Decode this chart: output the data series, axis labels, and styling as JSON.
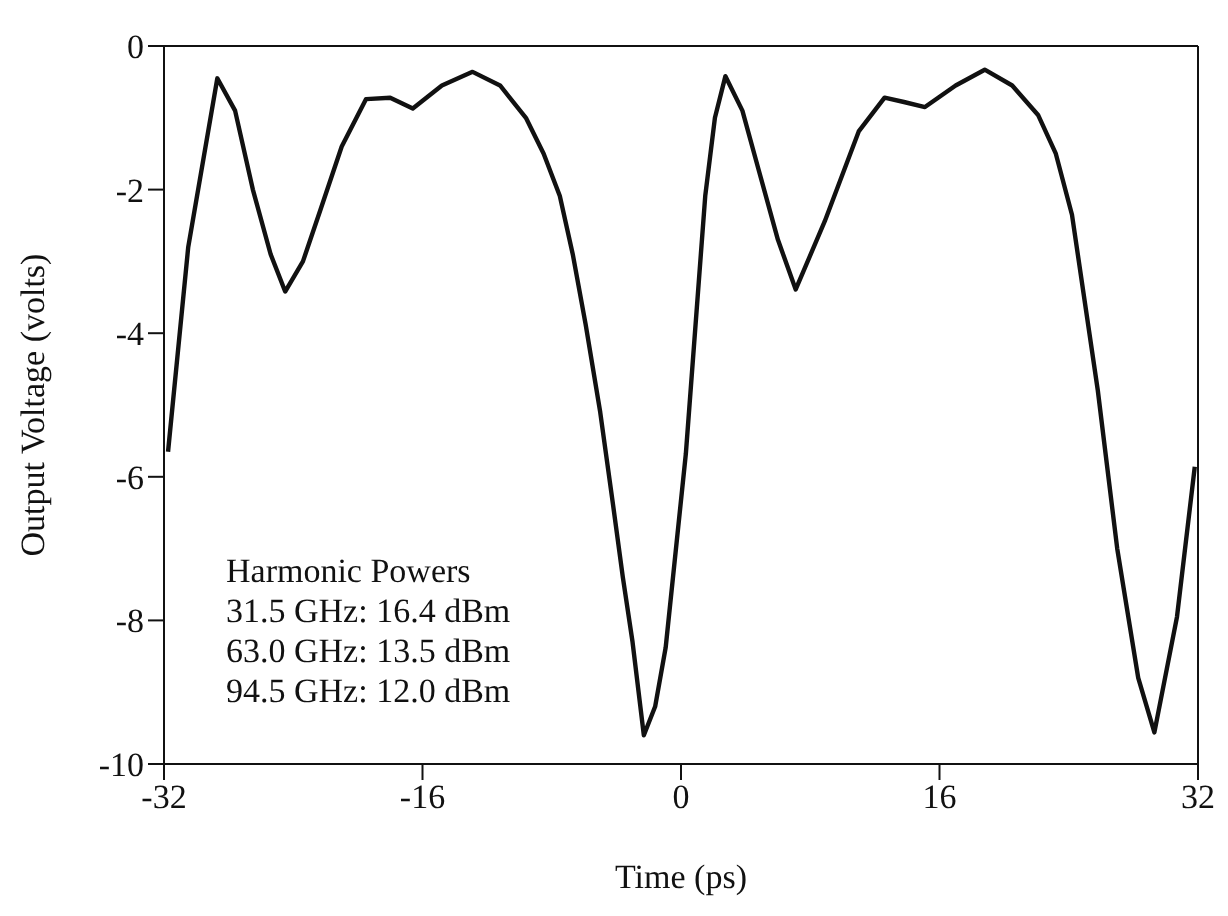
{
  "chart_data": {
    "type": "line",
    "xlabel": "Time (ps)",
    "ylabel": "Output Voltage (volts)",
    "x": [
      -31.75,
      -30.5,
      -28.7,
      -27.6,
      -26.5,
      -25.4,
      -24.5,
      -23.4,
      -22.3,
      -21,
      -19.5,
      -18,
      -16.6,
      -14.8,
      -12.9,
      -11.2,
      -9.6,
      -8.5,
      -7.5,
      -6.7,
      -5.9,
      -5,
      -4.2,
      -3.6,
      -3,
      -2.3,
      -1.6,
      -0.95,
      0.3,
      1.5,
      2.1,
      2.75,
      3.8,
      4.8,
      6,
      7.1,
      8.9,
      11,
      12.6,
      13.8,
      15.1,
      17,
      18.8,
      20.5,
      22.1,
      23.2,
      24.2,
      25.8,
      27,
      28.3,
      29.3,
      30.7,
      31.8
    ],
    "series": [
      {
        "color": "#111111",
        "values": [
          -5.65,
          -2.8,
          -0.45,
          -0.9,
          -2.0,
          -2.9,
          -3.42,
          -3.0,
          -2.27,
          -1.4,
          -0.74,
          -0.72,
          -0.87,
          -0.55,
          -0.36,
          -0.55,
          -1.0,
          -1.5,
          -2.09,
          -2.9,
          -3.88,
          -5.1,
          -6.4,
          -7.4,
          -8.3,
          -9.6,
          -9.2,
          -8.38,
          -5.68,
          -2.09,
          -1.0,
          -0.42,
          -0.9,
          -1.72,
          -2.7,
          -3.39,
          -2.44,
          -1.19,
          -0.72,
          -0.78,
          -0.85,
          -0.55,
          -0.33,
          -0.55,
          -0.96,
          -1.5,
          -2.35,
          -4.8,
          -7.0,
          -8.8,
          -9.56,
          -7.95,
          -5.86
        ]
      }
    ],
    "xlim": [
      -32,
      32
    ],
    "xticks": [
      -32,
      -16,
      0,
      16,
      32
    ],
    "ylim": [
      -10,
      0
    ],
    "yticks": [
      -10,
      -8,
      -6,
      -4,
      -2,
      0
    ],
    "grid": false,
    "legend": false,
    "marker": "none",
    "line_style": "solid",
    "annotations": [
      "Harmonic Powers",
      "31.5 GHz: 16.4 dBm",
      "63.0 GHz: 13.5 dBm",
      "94.5 GHz: 12.0 dBm"
    ]
  }
}
